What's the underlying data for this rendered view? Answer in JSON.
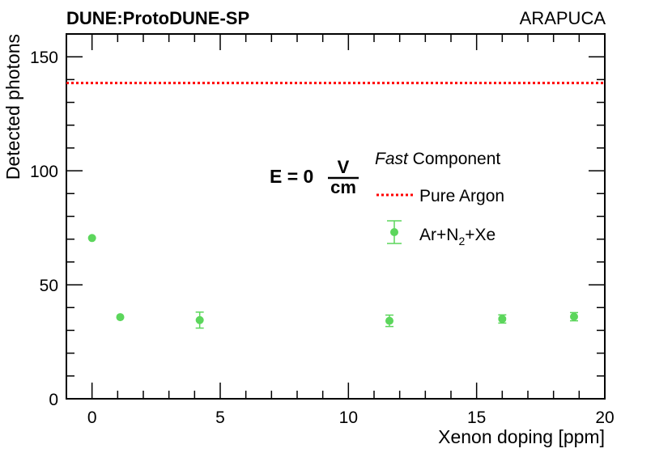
{
  "header": {
    "experiment": "DUNE:ProtoDUNE-SP",
    "detector": "ARAPUCA"
  },
  "colors": {
    "series": "#5cd65c",
    "reference": "#ff0000",
    "axis": "#000000"
  },
  "chart_data": {
    "type": "scatter",
    "title": "",
    "xlabel": "Xenon doping [ppm]",
    "ylabel": "Detected photons",
    "xlim": [
      -1,
      20
    ],
    "ylim": [
      0,
      160
    ],
    "x_ticks": [
      0,
      5,
      10,
      15,
      20
    ],
    "x_tick_labels": [
      "0",
      "5",
      "10",
      "15",
      "20"
    ],
    "y_ticks": [
      0,
      50,
      100,
      150
    ],
    "y_tick_labels": [
      "0",
      "50",
      "100",
      "150"
    ],
    "grid": false,
    "legend_position": "right",
    "annotation": {
      "field_prefix": "E = 0",
      "unit_numerator": "V",
      "unit_denominator": "cm"
    },
    "legend": {
      "header_italic": "Fast",
      "header_rest": " Component",
      "reference_label": "Pure Argon",
      "series_label_parts": [
        "Ar+N",
        "2",
        "+Xe"
      ]
    },
    "reference_line": {
      "name": "Pure Argon",
      "y": 138.5,
      "style": "dotted"
    },
    "series": [
      {
        "name": "Ar+N2+Xe",
        "points": [
          {
            "x": 0.0,
            "y": 70.5,
            "err": 0.0
          },
          {
            "x": 1.1,
            "y": 35.8,
            "err": 0.0
          },
          {
            "x": 4.2,
            "y": 34.5,
            "err": 3.5
          },
          {
            "x": 11.6,
            "y": 34.2,
            "err": 2.5
          },
          {
            "x": 16.0,
            "y": 35.0,
            "err": 1.8
          },
          {
            "x": 18.8,
            "y": 36.0,
            "err": 1.8
          }
        ]
      }
    ]
  }
}
